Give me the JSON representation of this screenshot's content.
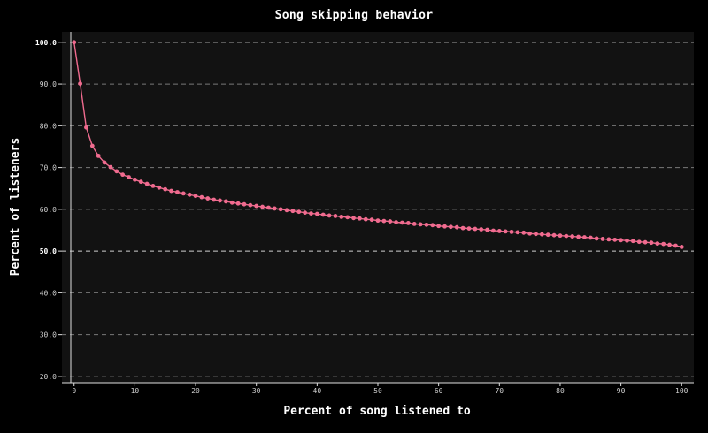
{
  "chart_data": {
    "type": "line",
    "title": "Song skipping behavior",
    "xlabel": "Percent of song listened to",
    "ylabel": "Percent of listeners",
    "xlim": [
      -2,
      102
    ],
    "ylim": [
      18.5,
      102.5
    ],
    "x_ticks": [
      0,
      10,
      20,
      30,
      40,
      50,
      60,
      70,
      80,
      90,
      100
    ],
    "y_ticks": [
      "20.0",
      "30.0",
      "40.0",
      "50.0",
      "60.0",
      "70.0",
      "80.0",
      "90.0",
      "100.0"
    ],
    "highlighted_y_ticks": [
      "50.0",
      "100.0"
    ],
    "grid": "horizontal dashed",
    "colors": {
      "line": "#f06b8f",
      "background": "#121212",
      "page": "#000000",
      "grid": "#7a7a7a"
    },
    "series": [
      {
        "x": [
          0,
          1,
          2,
          3,
          4,
          5,
          6,
          7,
          8,
          9,
          10,
          11,
          12,
          13,
          14,
          15,
          16,
          17,
          18,
          19,
          20,
          21,
          22,
          23,
          24,
          25,
          26,
          27,
          28,
          29,
          30,
          31,
          32,
          33,
          34,
          35,
          36,
          37,
          38,
          39,
          40,
          41,
          42,
          43,
          44,
          45,
          46,
          47,
          48,
          49,
          50,
          51,
          52,
          53,
          54,
          55,
          56,
          57,
          58,
          59,
          60,
          61,
          62,
          63,
          64,
          65,
          66,
          67,
          68,
          69,
          70,
          71,
          72,
          73,
          74,
          75,
          76,
          77,
          78,
          79,
          80,
          81,
          82,
          83,
          84,
          85,
          86,
          87,
          88,
          89,
          90,
          91,
          92,
          93,
          94,
          95,
          96,
          97,
          98,
          99,
          100
        ],
        "values": [
          100.0,
          90.1,
          79.6,
          75.2,
          72.8,
          71.2,
          70.1,
          69.1,
          68.3,
          67.7,
          67.1,
          66.6,
          66.1,
          65.6,
          65.2,
          64.8,
          64.4,
          64.1,
          63.8,
          63.5,
          63.2,
          62.9,
          62.6,
          62.3,
          62.1,
          61.9,
          61.6,
          61.4,
          61.2,
          61.0,
          60.8,
          60.6,
          60.4,
          60.2,
          60.0,
          59.8,
          59.6,
          59.4,
          59.2,
          59.0,
          58.9,
          58.7,
          58.5,
          58.4,
          58.2,
          58.1,
          57.9,
          57.8,
          57.6,
          57.5,
          57.3,
          57.2,
          57.1,
          56.9,
          56.8,
          56.7,
          56.5,
          56.4,
          56.3,
          56.2,
          56.0,
          55.9,
          55.8,
          55.7,
          55.5,
          55.4,
          55.3,
          55.2,
          55.1,
          54.9,
          54.8,
          54.7,
          54.6,
          54.5,
          54.4,
          54.2,
          54.1,
          54.0,
          53.9,
          53.8,
          53.7,
          53.6,
          53.5,
          53.4,
          53.3,
          53.2,
          53.0,
          52.9,
          52.8,
          52.7,
          52.6,
          52.5,
          52.4,
          52.2,
          52.1,
          52.0,
          51.8,
          51.7,
          51.5,
          51.3,
          51.0
        ]
      }
    ]
  }
}
